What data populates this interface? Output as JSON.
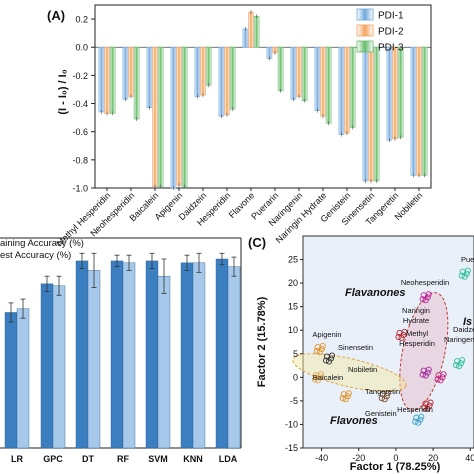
{
  "panel_a_label": "(A)",
  "panel_c_label": "(C)",
  "chart_data": [
    {
      "type": "bar",
      "panel": "A",
      "ylabel": "(I - I₀) / I₀",
      "ylim": [
        -1.0,
        0.3
      ],
      "yticks": [
        "-1.0",
        "-0.8",
        "-0.6",
        "-0.4",
        "-0.2",
        "0.0",
        "0.2"
      ],
      "legend_position": "top-right",
      "categories": [
        "Methyl Hesperidin",
        "Neohesperidin",
        "Baicalein",
        "Apigenin",
        "Daidzein",
        "Hesperidin",
        "Flavone",
        "Puerarin",
        "Naringenin",
        "Naringin Hydrate",
        "Genistein",
        "Sinensetin",
        "Tangeretin",
        "Nobiletin"
      ],
      "series": [
        {
          "name": "PDI-1",
          "color": "#6fa8dc",
          "values": [
            -0.46,
            -0.37,
            -0.43,
            -1.0,
            -0.35,
            -0.49,
            0.13,
            -0.08,
            -0.37,
            -0.45,
            -0.62,
            -0.95,
            -0.66,
            -0.91
          ]
        },
        {
          "name": "PDI-2",
          "color": "#f4a460",
          "values": [
            -0.47,
            -0.35,
            -0.99,
            -0.98,
            -0.34,
            -0.48,
            0.25,
            -0.04,
            -0.35,
            -0.49,
            -0.61,
            -0.95,
            -0.65,
            -0.91
          ]
        },
        {
          "name": "PDI-3",
          "color": "#66bb6a",
          "values": [
            -0.47,
            -0.51,
            -0.99,
            -0.99,
            -0.27,
            -0.44,
            0.22,
            -0.31,
            -0.38,
            -0.54,
            -0.57,
            -0.95,
            -0.64,
            -0.91
          ]
        }
      ]
    },
    {
      "type": "bar",
      "panel": "B",
      "legend": [
        "aining Accuracy (%)",
        "est Accuracy (%)"
      ],
      "legend_colors": [
        "#3c7fc0",
        "#a6c8ea"
      ],
      "ylim": [
        0,
        110
      ],
      "categories": [
        "LR",
        "GPC",
        "DT",
        "RF",
        "SVM",
        "KNN",
        "LDA"
      ],
      "series": [
        {
          "name": "Training Accuracy (%)",
          "values": [
            71,
            86,
            98,
            98,
            98,
            97,
            99
          ],
          "errors": [
            5,
            4,
            4,
            3,
            4,
            4,
            3
          ]
        },
        {
          "name": "Test Accuracy (%)",
          "values": [
            73,
            85,
            93,
            97,
            90,
            97,
            95
          ],
          "errors": [
            5,
            5,
            9,
            4,
            9,
            5,
            5
          ]
        }
      ]
    },
    {
      "type": "scatter",
      "panel": "C",
      "xlabel": "Factor 1 (78.25%)",
      "ylabel": "Factor 2 (15.78%)",
      "xlim": [
        -50,
        42
      ],
      "ylim": [
        -15,
        30
      ],
      "xticks": [
        "-40",
        "-20",
        "0",
        "20",
        "40"
      ],
      "yticks": [
        "-15",
        "-10",
        "-5",
        "0",
        "5",
        "10",
        "15",
        "20",
        "25"
      ],
      "groups": [
        {
          "label": "Flavanones",
          "color": "#c0392b"
        },
        {
          "label": "Flavones",
          "color": "#e0a83a"
        },
        {
          "label": "Is",
          "color": "#2bbf9a"
        }
      ],
      "compounds": [
        {
          "name": "Neohesperidin",
          "x": 16,
          "y": 17,
          "color": "#c0209c"
        },
        {
          "name": "Naringin Hydrate",
          "x": 3,
          "y": 9,
          "color": "#b5222c"
        },
        {
          "name": "Methyl Hesperidin",
          "x": 16,
          "y": 1,
          "color": "#a2259a"
        },
        {
          "name": "Naringenin",
          "x": 24,
          "y": 0,
          "color": "#c2207c"
        },
        {
          "name": "Hesperidin",
          "x": 17,
          "y": -6,
          "color": "#b5222c"
        },
        {
          "name": "Apigenin",
          "x": -41,
          "y": 6,
          "color": "#e39024"
        },
        {
          "name": "Baicalein",
          "x": -42,
          "y": 0,
          "color": "#e6a64a"
        },
        {
          "name": "Sinensetin",
          "x": -36,
          "y": 4,
          "color": "#333333"
        },
        {
          "name": "Nobiletin",
          "x": -27,
          "y": -4,
          "color": "#e39024"
        },
        {
          "name": "Tangeretin",
          "x": -6,
          "y": -4,
          "color": "#7a4f35"
        },
        {
          "name": "Daidzein",
          "x": 34,
          "y": 3,
          "color": "#2bbf9a"
        },
        {
          "name": "Genistein",
          "x": 12,
          "y": -9,
          "color": "#3aa0c9"
        },
        {
          "name": "Puerarin",
          "x": 37,
          "y": 22,
          "color": "#2bbf9a"
        }
      ],
      "point_labels": [
        {
          "text": "Neohesperidin",
          "color": "#c0209c"
        },
        {
          "text": "Naringin",
          "color": "#b5222c"
        },
        {
          "text": "Hydrate",
          "color": "#b5222c"
        },
        {
          "text": "Methyl",
          "color": "#a2259a"
        },
        {
          "text": "Hesperidin",
          "color": "#a2259a"
        },
        {
          "text": "Naringenin",
          "color": "#c2207c"
        },
        {
          "text": "Hesperidin",
          "color": "#b5222c"
        },
        {
          "text": "Apigenin",
          "color": "#e39024"
        },
        {
          "text": "Sinensetin",
          "color": "#333333"
        },
        {
          "text": "Baicalein",
          "color": "#e6a64a"
        },
        {
          "text": "Nobiletin",
          "color": "#e39024"
        },
        {
          "text": "Tangeretin",
          "color": "#7a4f35"
        },
        {
          "text": "Daidzein",
          "color": "#2bbf9a"
        },
        {
          "text": "Genistein",
          "color": "#3aa0c9"
        },
        {
          "text": "Puer",
          "color": "#2bbf9a"
        }
      ]
    }
  ]
}
